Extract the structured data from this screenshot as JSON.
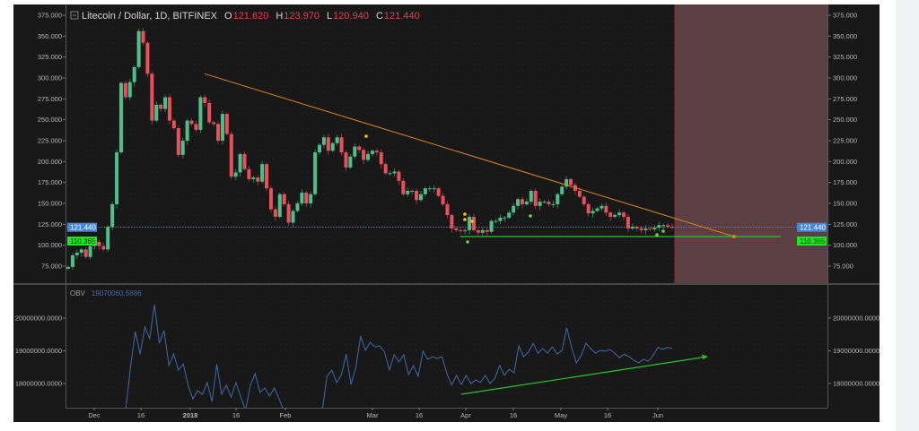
{
  "header": {
    "symbol_title": "Litecoin / Dollar, 1D, BITFINEX",
    "open_label": "O",
    "open_value": "121.620",
    "high_label": "H",
    "high_value": "123.970",
    "low_label": "L",
    "low_value": "120.940",
    "close_label": "C",
    "close_value": "121.440"
  },
  "price_badges": {
    "last_price": "121.440",
    "level_price": "110.365"
  },
  "obv_legend": {
    "name": "OBV",
    "value": "19070060.5886"
  },
  "colors": {
    "up": "#4fbf8a",
    "down": "#e8505b",
    "background": "#181818",
    "trendline": "#d9851c",
    "support_line": "#28c428",
    "last_price_badge": "#4a86d8",
    "level_badge": "#22e622",
    "obv_line": "#3f6aa8",
    "shaded_region": "#5b3f42",
    "yellow_dot": "#f2c811",
    "green_dot": "#7ccc45"
  },
  "chart_data": [
    {
      "type": "candlestick",
      "title": "Litecoin / Dollar, 1D, BITFINEX",
      "first_open": 72,
      "closes": [
        74,
        88,
        91,
        95,
        86,
        99,
        104,
        99,
        95,
        122,
        149,
        211,
        294,
        277,
        295,
        313,
        356,
        342,
        305,
        249,
        268,
        263,
        277,
        249,
        240,
        208,
        225,
        249,
        245,
        238,
        277,
        270,
        247,
        245,
        225,
        257,
        233,
        182,
        187,
        209,
        191,
        179,
        181,
        176,
        197,
        168,
        143,
        134,
        161,
        149,
        127,
        141,
        150,
        163,
        150,
        161,
        211,
        220,
        229,
        213,
        222,
        229,
        211,
        193,
        206,
        218,
        214,
        202,
        209,
        213,
        211,
        197,
        186,
        186,
        188,
        177,
        161,
        165,
        165,
        154,
        161,
        168,
        168,
        168,
        159,
        149,
        136,
        120,
        118,
        117,
        118,
        134,
        118,
        115,
        118,
        116,
        129,
        129,
        133,
        133,
        139,
        147,
        155,
        149,
        152,
        165,
        147,
        152,
        152,
        149,
        149,
        161,
        170,
        179,
        172,
        165,
        158,
        149,
        138,
        141,
        144,
        147,
        139,
        134,
        136,
        139,
        134,
        120,
        122,
        120,
        118,
        120,
        119,
        121,
        124,
        124,
        122,
        121.44
      ],
      "y_ticks": [
        "375.000",
        "350.000",
        "325.000",
        "300.000",
        "275.000",
        "250.000",
        "225.000",
        "200.000",
        "175.000",
        "150.000",
        "125.000",
        "100.000",
        "75.000"
      ],
      "ylim": [
        75,
        375
      ],
      "x_ticks": [
        "Dec",
        "16",
        "2018",
        "16",
        "Feb",
        "Mar",
        "16",
        "Apr",
        "16",
        "May",
        "16",
        "Jun"
      ],
      "horizontal_levels": {
        "last_price": 121.44,
        "support": 110.365
      },
      "trendline": {
        "from_price": 305,
        "to_price": 110.365
      }
    },
    {
      "type": "line",
      "name": "OBV",
      "unit_note": "values in millions",
      "values": [
        16.9,
        16.9,
        16.9,
        16.9,
        16.9,
        16.9,
        16.9,
        16.9,
        16.9,
        16.9,
        16.9,
        16.9,
        17.2,
        18.49,
        19.59,
        18.9,
        19.73,
        19.37,
        20.41,
        19.23,
        19.62,
        18.55,
        18.9,
        18.41,
        18.6,
        17.95,
        17.53,
        17.78,
        17.67,
        18.03,
        17.45,
        18.58,
        17.67,
        17.95,
        17.59,
        18.03,
        17.59,
        17.18,
        17.95,
        18.3,
        17.73,
        17.86,
        17.62,
        17.86,
        17.53,
        17.15,
        16.9,
        16.9,
        16.9,
        16.9,
        16.9,
        16.9,
        16.9,
        17.18,
        18.22,
        18.41,
        18.03,
        18.27,
        18.9,
        17.97,
        18.49,
        19.45,
        19.01,
        19.26,
        19.12,
        19.15,
        18.96,
        18.41,
        18.88,
        18.66,
        18.88,
        18.27,
        18.55,
        18.22,
        18.99,
        18.74,
        18.82,
        18.77,
        18.82,
        18.3,
        17.95,
        18.25,
        17.97,
        18.25,
        18.0,
        18.11,
        18.03,
        18.25,
        18.0,
        18.16,
        18.55,
        18.25,
        18.44,
        18.33,
        19.15,
        18.82,
        18.96,
        19.23,
        18.93,
        19.07,
        18.93,
        19.12,
        18.9,
        19.01,
        19.7,
        19.12,
        18.63,
        18.85,
        19.23,
        19.07,
        18.93,
        19.01,
        18.99,
        19.04,
        18.93,
        18.79,
        18.9,
        18.82,
        18.71,
        18.63,
        18.74,
        18.68,
        18.85,
        19.1,
        19.04,
        19.1,
        19.07
      ],
      "y_ticks": [
        "20000000.0000",
        "19000000.0000",
        "18000000.0000"
      ],
      "ylim_millions": [
        17.2,
        20.9
      ]
    }
  ]
}
